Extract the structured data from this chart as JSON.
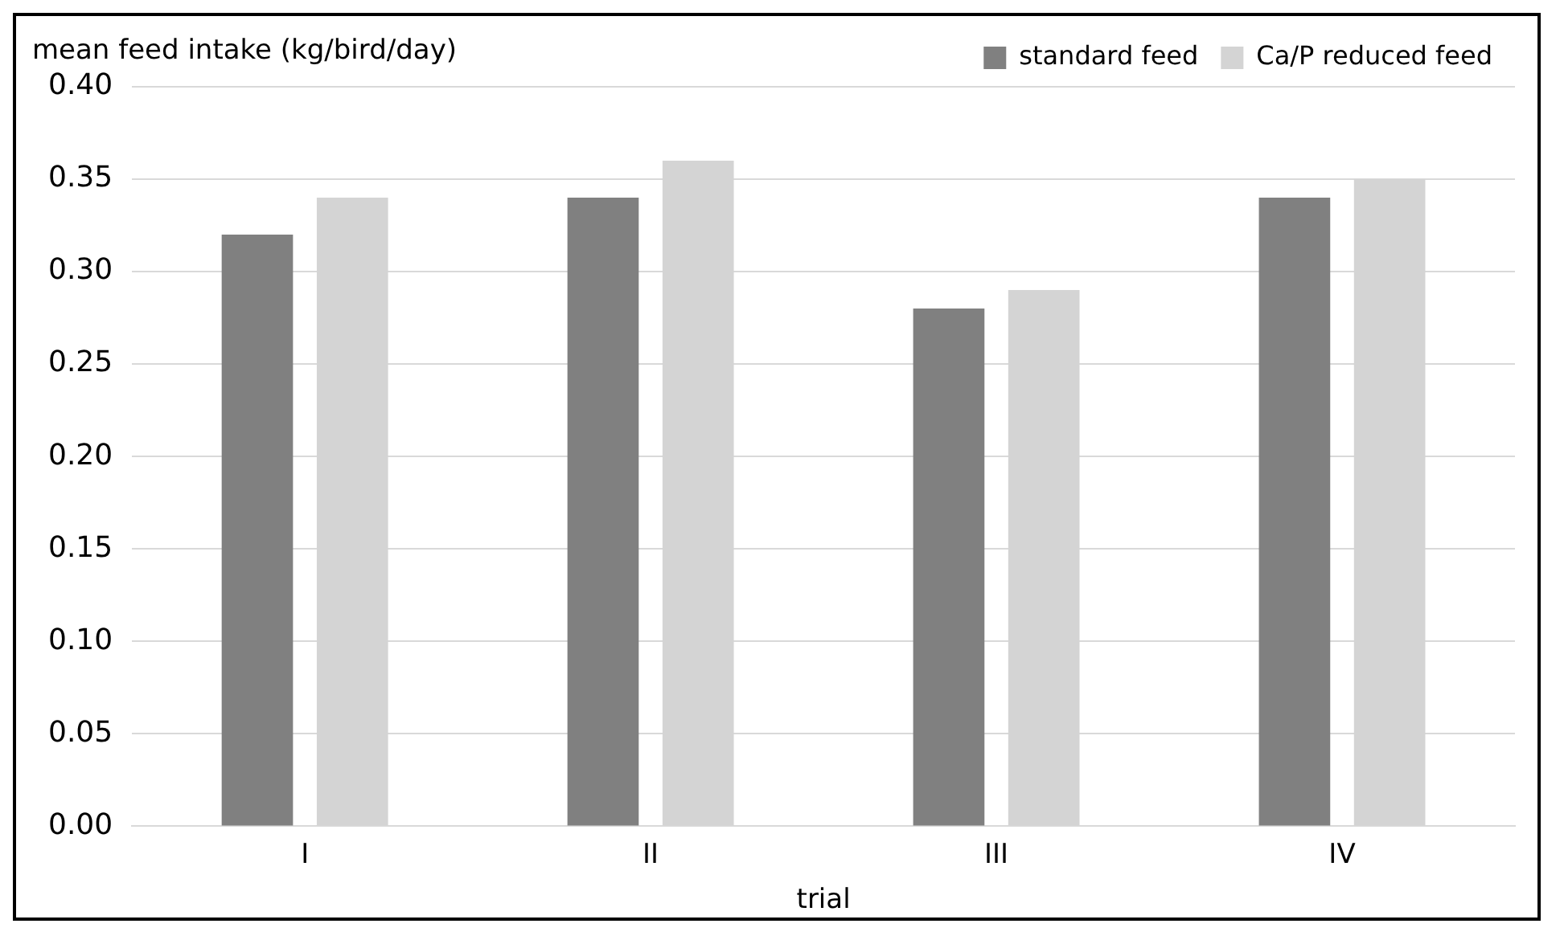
{
  "chart_data": {
    "type": "bar",
    "ylabel": "mean feed intake (kg/bird/day)",
    "xlabel": "trial",
    "categories": [
      "I",
      "II",
      "III",
      "IV"
    ],
    "series": [
      {
        "name": "standard feed",
        "color": "#808080",
        "values": [
          0.32,
          0.34,
          0.28,
          0.34
        ]
      },
      {
        "name": "Ca/P reduced feed",
        "color": "#d4d4d4",
        "values": [
          0.34,
          0.36,
          0.29,
          0.35
        ]
      }
    ],
    "ylim": [
      0,
      0.4
    ],
    "yticks": [
      {
        "value": 0,
        "label": "0.00"
      },
      {
        "value": 0.05,
        "label": "0.05"
      },
      {
        "value": 0.1,
        "label": "0.10"
      },
      {
        "value": 0.15,
        "label": "0.15"
      },
      {
        "value": 0.2,
        "label": "0.20"
      },
      {
        "value": 0.25,
        "label": "0.25"
      },
      {
        "value": 0.3,
        "label": "0.30"
      },
      {
        "value": 0.35,
        "label": "0.35"
      },
      {
        "value": 0.4,
        "label": "0.40"
      }
    ],
    "grid": "y",
    "legend": "top right"
  }
}
